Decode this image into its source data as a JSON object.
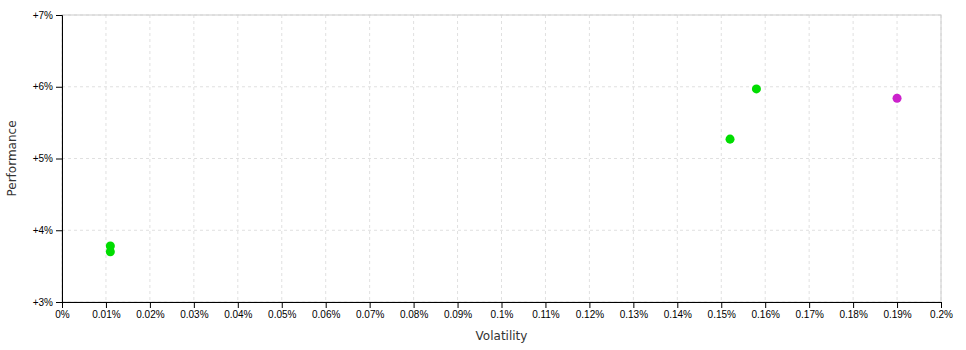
{
  "chart_data": {
    "type": "scatter",
    "xlabel": "Volatility",
    "ylabel": "Performance",
    "x": [
      0.00011,
      0.00011,
      0.00152,
      0.00158,
      0.0019
    ],
    "values": [
      0.0378,
      0.037,
      0.0527,
      0.0597,
      0.0584
    ],
    "colors": [
      "#00dd00",
      "#00dd00",
      "#00dd00",
      "#00dd00",
      "#cc22cc"
    ],
    "marker": "circle",
    "xlim": [
      0.0,
      0.002
    ],
    "ylim": [
      0.03,
      0.07
    ],
    "xticks": [
      {
        "value": 0.0,
        "label": "0%"
      },
      {
        "value": 0.0001,
        "label": "0.01%"
      },
      {
        "value": 0.0002,
        "label": "0.02%"
      },
      {
        "value": 0.0003,
        "label": "0.03%"
      },
      {
        "value": 0.0004,
        "label": "0.04%"
      },
      {
        "value": 0.0005,
        "label": "0.05%"
      },
      {
        "value": 0.0006,
        "label": "0.06%"
      },
      {
        "value": 0.0007,
        "label": "0.07%"
      },
      {
        "value": 0.0008,
        "label": "0.08%"
      },
      {
        "value": 0.0009,
        "label": "0.09%"
      },
      {
        "value": 0.001,
        "label": "0.1%"
      },
      {
        "value": 0.0011,
        "label": "0.11%"
      },
      {
        "value": 0.0012,
        "label": "0.12%"
      },
      {
        "value": 0.0013,
        "label": "0.13%"
      },
      {
        "value": 0.0014,
        "label": "0.14%"
      },
      {
        "value": 0.0015,
        "label": "0.15%"
      },
      {
        "value": 0.0016,
        "label": "0.16%"
      },
      {
        "value": 0.0017,
        "label": "0.17%"
      },
      {
        "value": 0.0018,
        "label": "0.18%"
      },
      {
        "value": 0.0019,
        "label": "0.19%"
      },
      {
        "value": 0.002,
        "label": "0.2%"
      }
    ],
    "yticks": [
      {
        "value": 0.03,
        "label": "+3%"
      },
      {
        "value": 0.04,
        "label": "+4%"
      },
      {
        "value": 0.05,
        "label": "+5%"
      },
      {
        "value": 0.06,
        "label": "+6%"
      },
      {
        "value": 0.07,
        "label": "+7%"
      }
    ],
    "grid": true
  }
}
